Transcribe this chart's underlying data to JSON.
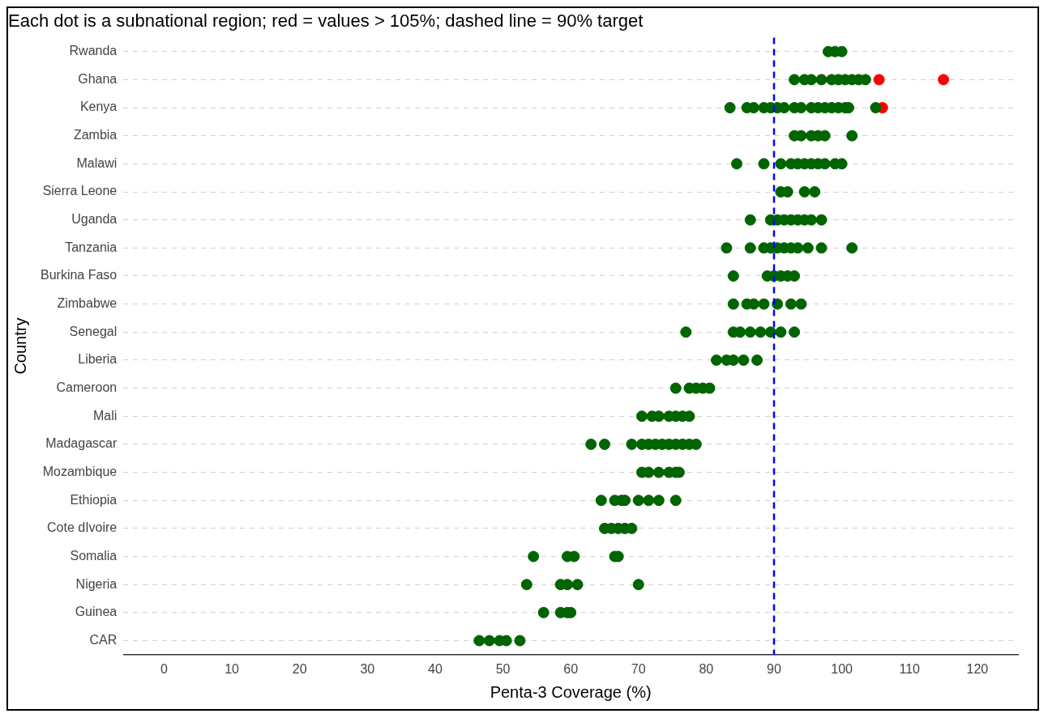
{
  "chart_data": {
    "type": "scatter",
    "orientation": "horizontal",
    "title": "Each dot is a subnational region; red = values > 105%; dashed line = 90% target",
    "xlabel": "Penta-3 Coverage (%)",
    "ylabel": "Country",
    "categories": [
      "Rwanda",
      "Ghana",
      "Kenya",
      "Zambia",
      "Malawi",
      "Sierra Leone",
      "Uganda",
      "Tanzania",
      "Burkina Faso",
      "Zimbabwe",
      "Senegal",
      "Liberia",
      "Cameroon",
      "Mali",
      "Madagascar",
      "Mozambique",
      "Ethiopia",
      "Cote dIvoire",
      "Somalia",
      "Nigeria",
      "Guinea",
      "CAR"
    ],
    "xlim": [
      -6,
      126
    ],
    "xticks": [
      0,
      10,
      20,
      30,
      40,
      50,
      60,
      70,
      80,
      90,
      100,
      110,
      120
    ],
    "grid": "y",
    "marker": "circle",
    "ref_lines": [
      {
        "axis": "x",
        "value": 90,
        "color": "#0000ff",
        "line_style": "dashed"
      }
    ],
    "series": [
      {
        "color": "#006400",
        "x": [
          "Rwanda",
          "Rwanda",
          "Rwanda",
          "Ghana",
          "Ghana",
          "Ghana",
          "Ghana",
          "Ghana",
          "Ghana",
          "Ghana",
          "Ghana",
          "Ghana",
          "Ghana",
          "Kenya",
          "Kenya",
          "Kenya",
          "Kenya",
          "Kenya",
          "Kenya",
          "Kenya",
          "Kenya",
          "Kenya",
          "Kenya",
          "Kenya",
          "Kenya",
          "Kenya",
          "Kenya",
          "Kenya",
          "Kenya",
          "Kenya",
          "Zambia",
          "Zambia",
          "Zambia",
          "Zambia",
          "Zambia",
          "Zambia",
          "Malawi",
          "Malawi",
          "Malawi",
          "Malawi",
          "Malawi",
          "Malawi",
          "Malawi",
          "Malawi",
          "Malawi",
          "Malawi",
          "Malawi",
          "Sierra Leone",
          "Sierra Leone",
          "Sierra Leone",
          "Sierra Leone",
          "Uganda",
          "Uganda",
          "Uganda",
          "Uganda",
          "Uganda",
          "Uganda",
          "Uganda",
          "Uganda",
          "Uganda",
          "Tanzania",
          "Tanzania",
          "Tanzania",
          "Tanzania",
          "Tanzania",
          "Tanzania",
          "Tanzania",
          "Tanzania",
          "Tanzania",
          "Tanzania",
          "Tanzania",
          "Burkina Faso",
          "Burkina Faso",
          "Burkina Faso",
          "Burkina Faso",
          "Burkina Faso",
          "Burkina Faso",
          "Zimbabwe",
          "Zimbabwe",
          "Zimbabwe",
          "Zimbabwe",
          "Zimbabwe",
          "Zimbabwe",
          "Zimbabwe",
          "Senegal",
          "Senegal",
          "Senegal",
          "Senegal",
          "Senegal",
          "Senegal",
          "Senegal",
          "Senegal",
          "Liberia",
          "Liberia",
          "Liberia",
          "Liberia",
          "Liberia",
          "Cameroon",
          "Cameroon",
          "Cameroon",
          "Cameroon",
          "Cameroon",
          "Mali",
          "Mali",
          "Mali",
          "Mali",
          "Mali",
          "Mali",
          "Mali",
          "Madagascar",
          "Madagascar",
          "Madagascar",
          "Madagascar",
          "Madagascar",
          "Madagascar",
          "Madagascar",
          "Madagascar",
          "Madagascar",
          "Madagascar",
          "Madagascar",
          "Madagascar",
          "Mozambique",
          "Mozambique",
          "Mozambique",
          "Mozambique",
          "Mozambique",
          "Mozambique",
          "Ethiopia",
          "Ethiopia",
          "Ethiopia",
          "Ethiopia",
          "Ethiopia",
          "Ethiopia",
          "Ethiopia",
          "Ethiopia",
          "Cote dIvoire",
          "Cote dIvoire",
          "Cote dIvoire",
          "Cote dIvoire",
          "Cote dIvoire",
          "Somalia",
          "Somalia",
          "Somalia",
          "Somalia",
          "Somalia",
          "Nigeria",
          "Nigeria",
          "Nigeria",
          "Nigeria",
          "Nigeria",
          "Guinea",
          "Guinea",
          "Guinea",
          "Guinea",
          "CAR",
          "CAR",
          "CAR",
          "CAR",
          "CAR"
        ],
        "values": [
          98,
          99,
          100,
          93,
          94.5,
          95.5,
          97,
          98.5,
          99.5,
          100.5,
          101.5,
          102.5,
          103.5,
          83.5,
          86,
          87,
          88.5,
          89.5,
          90.5,
          91.5,
          93,
          94,
          95.5,
          96.5,
          97.5,
          98.5,
          99.5,
          100.5,
          101,
          105,
          93,
          94,
          95.5,
          96.5,
          97.5,
          101.5,
          84.5,
          88.5,
          91,
          92.5,
          93.5,
          94.5,
          95.5,
          96.5,
          97.5,
          99,
          100,
          91,
          92,
          94.5,
          96,
          86.5,
          89.5,
          90.5,
          91.5,
          92.5,
          93.5,
          94.5,
          95.5,
          97,
          83,
          86.5,
          88.5,
          89.5,
          90.5,
          91.5,
          92.5,
          93.5,
          95,
          97,
          101.5,
          84,
          89,
          90,
          91,
          92,
          93,
          84,
          86,
          87,
          88.5,
          90.5,
          92.5,
          94,
          77,
          84,
          85,
          86.5,
          88,
          89.5,
          91,
          93,
          81.5,
          83,
          84,
          85.5,
          87.5,
          75.5,
          77.5,
          78.5,
          79.5,
          80.5,
          70.5,
          72,
          73,
          74.5,
          75.5,
          76.5,
          77.5,
          63,
          65,
          69,
          70.5,
          71.5,
          72.5,
          73.5,
          74.5,
          75.5,
          76.5,
          77.5,
          78.5,
          70.5,
          71.5,
          73,
          74.5,
          75.5,
          76,
          64.5,
          66.5,
          67.5,
          68,
          70,
          71.5,
          73,
          75.5,
          65,
          66,
          67,
          68,
          69,
          54.5,
          59.5,
          60.5,
          66.5,
          67,
          53.5,
          58.5,
          59.5,
          61,
          70,
          56,
          58.5,
          59.5,
          60,
          46.5,
          48,
          49.5,
          50.5,
          52.5
        ]
      },
      {
        "color": "#ff0000",
        "x": [
          "Ghana",
          "Ghana",
          "Kenya"
        ],
        "values": [
          105.5,
          115,
          106
        ]
      }
    ]
  }
}
